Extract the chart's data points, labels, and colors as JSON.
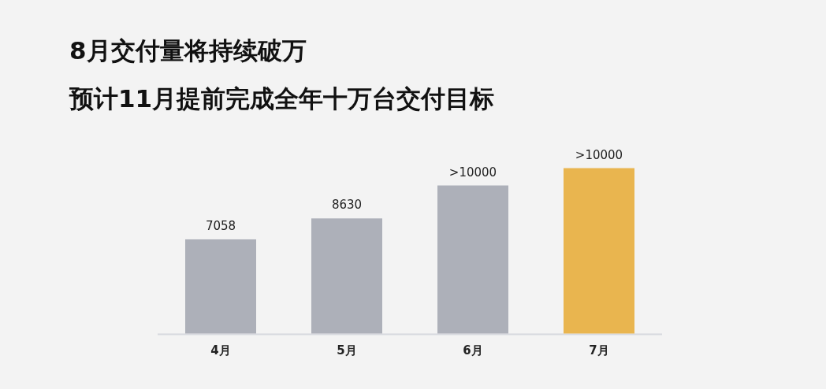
{
  "chart_data": {
    "type": "bar",
    "title": "8月交付量将持续破万",
    "subtitle": "预计11月提前完成全年十万台交付目标",
    "categories": [
      "4月",
      "5月",
      "6月",
      "7月"
    ],
    "values": [
      7058,
      8630,
      11100,
      12400
    ],
    "value_labels": [
      "7058",
      "8630",
      ">10000",
      ">10000"
    ],
    "colors": [
      "#adb0b9",
      "#adb0b9",
      "#adb0b9",
      "#e9b54f"
    ]
  }
}
